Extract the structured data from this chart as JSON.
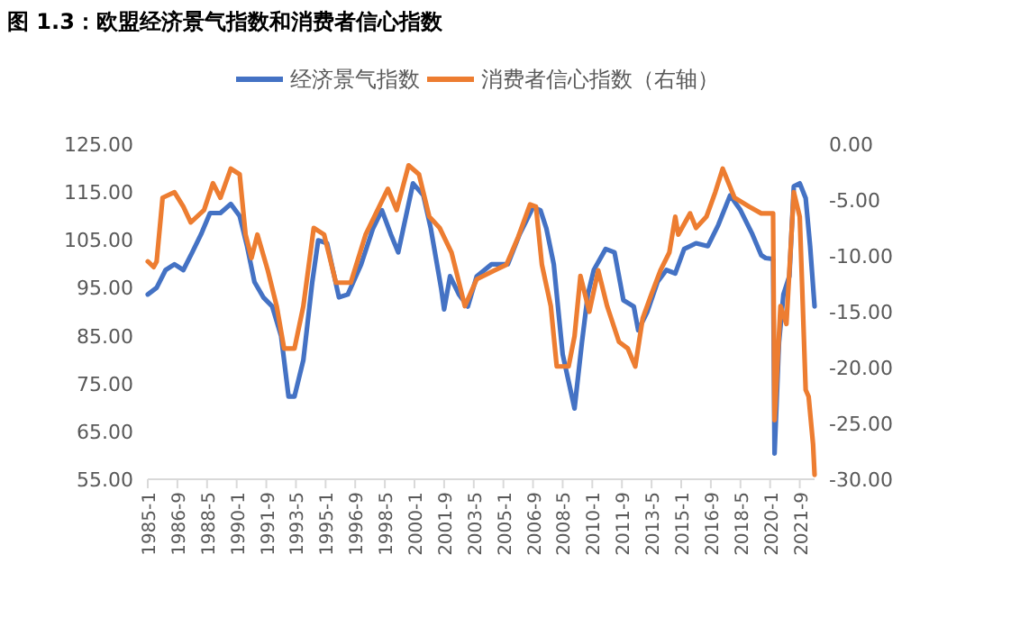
{
  "chart_data": {
    "type": "line",
    "title": "图 1.3：欧盟经济景气指数和消费者信心指数",
    "legend": "top",
    "y2label": null,
    "xlim": [
      "1985-01",
      "2022-07"
    ],
    "xticks": [
      {
        "value": "1985-01",
        "label": "1985-1"
      },
      {
        "value": "1986-09",
        "label": "1986-9"
      },
      {
        "value": "1988-05",
        "label": "1988-5"
      },
      {
        "value": "1990-01",
        "label": "1990-1"
      },
      {
        "value": "1991-09",
        "label": "1991-9"
      },
      {
        "value": "1993-05",
        "label": "1993-5"
      },
      {
        "value": "1995-01",
        "label": "1995-1"
      },
      {
        "value": "1996-09",
        "label": "1996-9"
      },
      {
        "value": "1998-05",
        "label": "1998-5"
      },
      {
        "value": "2000-01",
        "label": "2000-1"
      },
      {
        "value": "2001-09",
        "label": "2001-9"
      },
      {
        "value": "2003-05",
        "label": "2003-5"
      },
      {
        "value": "2005-01",
        "label": "2005-1"
      },
      {
        "value": "2006-09",
        "label": "2006-9"
      },
      {
        "value": "2008-05",
        "label": "2008-5"
      },
      {
        "value": "2010-01",
        "label": "2010-1"
      },
      {
        "value": "2011-09",
        "label": "2011-9"
      },
      {
        "value": "2013-05",
        "label": "2013-5"
      },
      {
        "value": "2015-01",
        "label": "2015-1"
      },
      {
        "value": "2016-09",
        "label": "2016-9"
      },
      {
        "value": "2018-05",
        "label": "2018-5"
      },
      {
        "value": "2020-01",
        "label": "2020-1"
      },
      {
        "value": "2021-09",
        "label": "2021-9"
      }
    ],
    "ylim": [
      55,
      125
    ],
    "yticks": [
      {
        "value": 55,
        "label": "55.00"
      },
      {
        "value": 65,
        "label": "65.00"
      },
      {
        "value": 75,
        "label": "75.00"
      },
      {
        "value": 85,
        "label": "85.00"
      },
      {
        "value": 95,
        "label": "95.00"
      },
      {
        "value": 105,
        "label": "105.00"
      },
      {
        "value": 115,
        "label": "115.00"
      },
      {
        "value": 125,
        "label": "125.00"
      }
    ],
    "y2lim": [
      -30,
      0
    ],
    "y2ticks": [
      {
        "value": -30,
        "label": "-30.00"
      },
      {
        "value": -25,
        "label": "-25.00"
      },
      {
        "value": -20,
        "label": "-20.00"
      },
      {
        "value": -15,
        "label": "-15.00"
      },
      {
        "value": -10,
        "label": "-10.00"
      },
      {
        "value": -5,
        "label": "-5.00"
      },
      {
        "value": 0,
        "label": "0.00"
      }
    ],
    "series": [
      {
        "name": "经济景气指数",
        "color": "#4472c4",
        "x": [
          "1985-01",
          "1985-07",
          "1986-01",
          "1986-07",
          "1987-01",
          "1987-07",
          "1988-01",
          "1988-07",
          "1989-02",
          "1989-09",
          "1990-03",
          "1990-08",
          "1991-01",
          "1991-07",
          "1992-01",
          "1992-07",
          "1992-12",
          "1993-04",
          "1993-10",
          "1994-04",
          "1994-08",
          "1995-02",
          "1995-10",
          "1996-04",
          "1997-01",
          "1997-09",
          "1998-03",
          "1998-09",
          "1999-02",
          "1999-12",
          "2000-07",
          "2000-12",
          "2001-07",
          "2001-09",
          "2002-01",
          "2002-07",
          "2003-01",
          "2003-07",
          "2004-05",
          "2005-04",
          "2005-12",
          "2006-09",
          "2007-02",
          "2007-06",
          "2007-11",
          "2008-05",
          "2009-01",
          "2009-06",
          "2009-10",
          "2010-02",
          "2010-10",
          "2011-04",
          "2011-10",
          "2012-05",
          "2012-08",
          "2013-02",
          "2013-09",
          "2014-03",
          "2014-09",
          "2015-03",
          "2015-11",
          "2016-07",
          "2017-02",
          "2017-10",
          "2018-05",
          "2019-01",
          "2019-07",
          "2019-10",
          "2020-03",
          "2020-04",
          "2020-07",
          "2020-10",
          "2021-02",
          "2021-05",
          "2021-09",
          "2022-01",
          "2022-04",
          "2022-07"
        ],
        "values": [
          93.6,
          95,
          98.7,
          99.9,
          98.7,
          102.4,
          106.2,
          110.6,
          110.6,
          112.5,
          110,
          103.7,
          96.2,
          93,
          91.1,
          84.9,
          72.3,
          72.3,
          79.9,
          96.2,
          104.9,
          104.3,
          93,
          93.6,
          99.9,
          107.4,
          111.2,
          106.2,
          102.4,
          116.8,
          114.3,
          107.4,
          94.9,
          90.5,
          97.4,
          93.6,
          91.1,
          97.4,
          99.9,
          99.9,
          106.2,
          111.8,
          111.2,
          107.4,
          99.9,
          81.1,
          69.8,
          83.6,
          93.6,
          98.7,
          103.1,
          102.4,
          92.4,
          91.1,
          86.1,
          89.9,
          96.2,
          98.7,
          98,
          103.1,
          104.3,
          103.7,
          108.1,
          114.3,
          111.2,
          106.2,
          101.8,
          101.2,
          101,
          60.4,
          83.6,
          93.6,
          97.4,
          116.2,
          116.8,
          113.7,
          103.7,
          91.1
        ]
      },
      {
        "name": "消费者信心指数（右轴）",
        "color": "#ed7d31",
        "axis": "y2",
        "x": [
          "1985-01",
          "1985-05",
          "1985-07",
          "1985-11",
          "1986-07",
          "1987-01",
          "1987-06",
          "1988-03",
          "1988-09",
          "1989-02",
          "1989-09",
          "1990-03",
          "1990-07",
          "1990-11",
          "1991-03",
          "1991-10",
          "1992-04",
          "1992-09",
          "1993-04",
          "1993-10",
          "1994-05",
          "1994-12",
          "1995-08",
          "1996-06",
          "1997-04",
          "1998-07",
          "1999-01",
          "1999-09",
          "2000-04",
          "2000-11",
          "2001-06",
          "2002-02",
          "2002-11",
          "2003-07",
          "2004-07",
          "2005-03",
          "2005-11",
          "2006-07",
          "2006-11",
          "2007-03",
          "2007-09",
          "2008-01",
          "2008-09",
          "2009-01",
          "2009-05",
          "2009-11",
          "2010-05",
          "2010-11",
          "2011-07",
          "2012-01",
          "2012-06",
          "2012-11",
          "2013-05",
          "2013-11",
          "2014-05",
          "2014-09",
          "2014-11",
          "2015-07",
          "2015-11",
          "2016-06",
          "2016-12",
          "2017-05",
          "2018-01",
          "2018-11",
          "2019-07",
          "2020-03",
          "2020-04",
          "2020-08",
          "2020-12",
          "2021-05",
          "2021-09",
          "2022-01",
          "2022-03",
          "2022-06",
          "2022-07"
        ],
        "values": [
          -10.5,
          -11,
          -10.5,
          -4.8,
          -4.3,
          -5.6,
          -7,
          -5.9,
          -3.5,
          -4.8,
          -2.2,
          -2.7,
          -8.1,
          -10.2,
          -8.1,
          -11.3,
          -14.5,
          -18.3,
          -18.3,
          -14.5,
          -7.5,
          -8.1,
          -12.4,
          -12.4,
          -8.1,
          -4,
          -5.9,
          -1.9,
          -2.7,
          -6.5,
          -7.5,
          -9.7,
          -14.5,
          -12.1,
          -11.3,
          -10.8,
          -8.3,
          -5.4,
          -5.6,
          -10.8,
          -14.5,
          -19.9,
          -19.9,
          -17.2,
          -11.8,
          -15,
          -11.3,
          -14.5,
          -17.7,
          -18.3,
          -19.9,
          -15.6,
          -13.4,
          -11.3,
          -9.7,
          -6.5,
          -8.1,
          -6.2,
          -7.5,
          -6.5,
          -4.3,
          -2.2,
          -4.8,
          -5.6,
          -6.2,
          -6.2,
          -24.7,
          -14.5,
          -16.1,
          -4.3,
          -6.5,
          -22,
          -22.6,
          -26.9,
          -29.6
        ]
      }
    ]
  }
}
